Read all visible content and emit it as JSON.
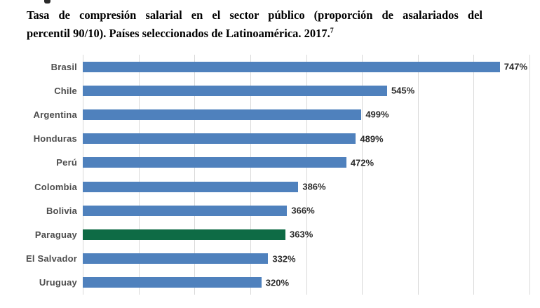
{
  "title": {
    "line1": "Tasa de compresión salarial en el sector público (proporción de asalariados del",
    "line2": "percentil 90/10). Países seleccionados de Latinoamérica. 2017.",
    "footnote_marker": "7"
  },
  "chart_data": {
    "type": "bar",
    "orientation": "horizontal",
    "title": "Tasa de compresión salarial en el sector público (proporción de asalariados del percentil 90/10). Países seleccionados de Latinoamérica. 2017.",
    "categories": [
      "Brasil",
      "Chile",
      "Argentina",
      "Honduras",
      "Perú",
      "Colombia",
      "Bolivia",
      "Paraguay",
      "El Salvador",
      "Uruguay"
    ],
    "values": [
      747,
      545,
      499,
      489,
      472,
      386,
      366,
      363,
      332,
      320
    ],
    "value_labels": [
      "747%",
      "545%",
      "499%",
      "489%",
      "472%",
      "386%",
      "366%",
      "363%",
      "332%",
      "320%"
    ],
    "highlight_category": "Paraguay",
    "xlabel": "",
    "ylabel": "",
    "xlim": [
      0,
      800
    ],
    "grid_interval": 100,
    "grid": true,
    "legend": false,
    "colors": {
      "bar": "#4f81bd",
      "highlight_bar": "#0e6b45",
      "gridline": "#d9d9d9",
      "category_label": "#4d4d4d",
      "value_label": "#2b2b2b",
      "title": "#000000"
    }
  }
}
